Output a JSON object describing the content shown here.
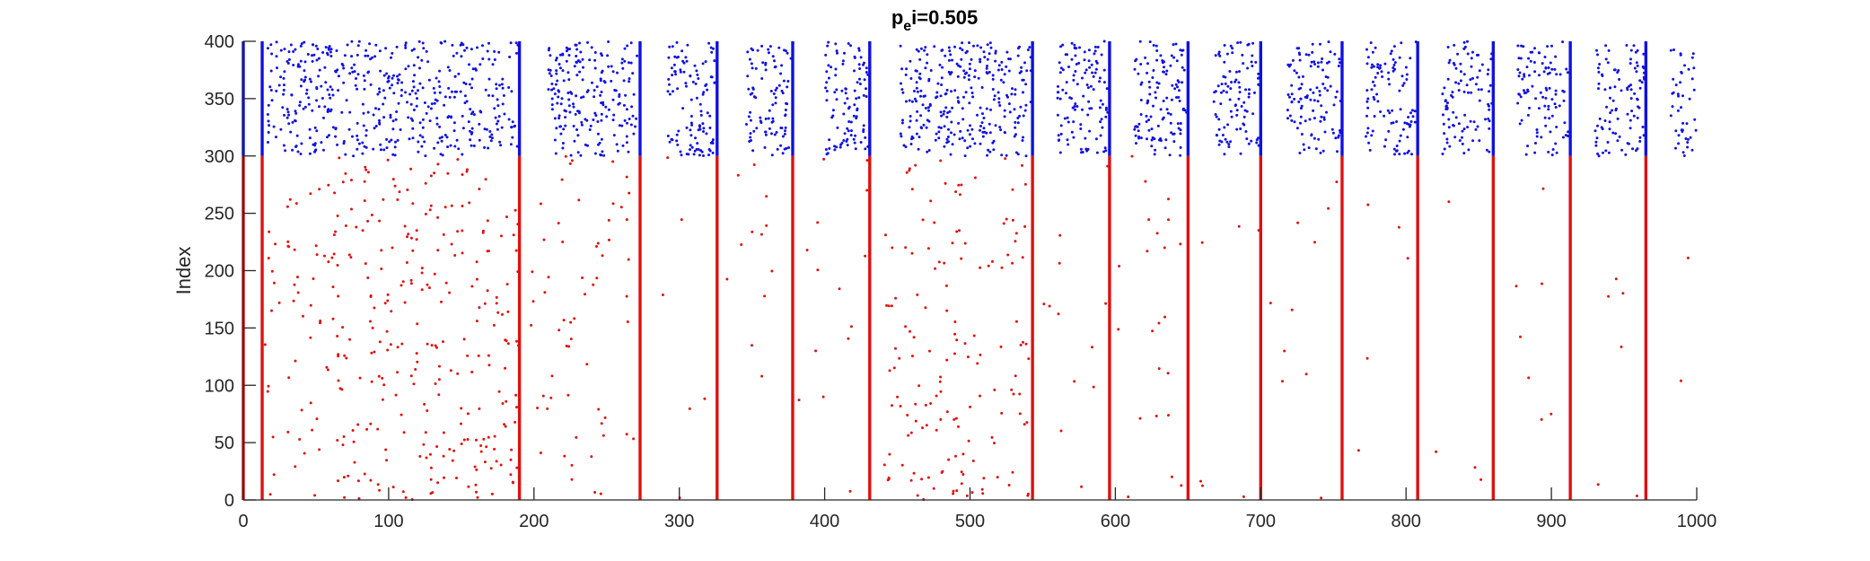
{
  "chart_data": {
    "type": "scatter",
    "title_main": "p",
    "title_sub": "e",
    "title_rest": "i=0.505",
    "xlabel": "",
    "ylabel": "Index",
    "xlim": [
      0,
      1000
    ],
    "ylim": [
      0,
      400
    ],
    "xticks": [
      0,
      100,
      200,
      300,
      400,
      500,
      600,
      700,
      800,
      900,
      1000
    ],
    "yticks": [
      0,
      50,
      100,
      150,
      200,
      250,
      300,
      350,
      400
    ],
    "grid": false,
    "legend": "none",
    "colors": {
      "excitatory": "#dd1111",
      "inhibitory": "#1111dd",
      "axis": "#262626"
    },
    "series": [
      {
        "index_range": [
          0,
          300
        ],
        "color_key": "excitatory"
      },
      {
        "index_range": [
          300,
          400
        ],
        "color_key": "inhibitory"
      }
    ],
    "synchronous_events_x": [
      0,
      13,
      190,
      273,
      326,
      378,
      431,
      543,
      596,
      650,
      700,
      756,
      808,
      860,
      913,
      965
    ],
    "excitatory_scatter_windows": [
      {
        "x": [
          15,
          190
        ],
        "count": 320
      },
      {
        "x": [
          198,
          272
        ],
        "count": 60
      },
      {
        "x": [
          280,
          325
        ],
        "count": 6
      },
      {
        "x": [
          330,
          377
        ],
        "count": 12
      },
      {
        "x": [
          382,
          430
        ],
        "count": 14
      },
      {
        "x": [
          440,
          542
        ],
        "count": 150
      },
      {
        "x": [
          548,
          595
        ],
        "count": 12
      },
      {
        "x": [
          600,
          649
        ],
        "count": 22
      },
      {
        "x": [
          655,
          699
        ],
        "count": 6
      },
      {
        "x": [
          705,
          755
        ],
        "count": 10
      },
      {
        "x": [
          760,
          807
        ],
        "count": 5
      },
      {
        "x": [
          812,
          859
        ],
        "count": 4
      },
      {
        "x": [
          865,
          912
        ],
        "count": 7
      },
      {
        "x": [
          918,
          964
        ],
        "count": 6
      },
      {
        "x": [
          970,
          1000
        ],
        "count": 2
      }
    ],
    "inhibitory_scatter_windows": [
      {
        "x": [
          16,
          189
        ],
        "count": 480
      },
      {
        "x": [
          210,
          271
        ],
        "count": 200
      },
      {
        "x": [
          292,
          325
        ],
        "count": 110
      },
      {
        "x": [
          346,
          377
        ],
        "count": 95
      },
      {
        "x": [
          400,
          430
        ],
        "count": 100
      },
      {
        "x": [
          452,
          542
        ],
        "count": 290
      },
      {
        "x": [
          560,
          595
        ],
        "count": 115
      },
      {
        "x": [
          613,
          649
        ],
        "count": 120
      },
      {
        "x": [
          667,
          699
        ],
        "count": 100
      },
      {
        "x": [
          717,
          755
        ],
        "count": 110
      },
      {
        "x": [
          771,
          807
        ],
        "count": 100
      },
      {
        "x": [
          825,
          859
        ],
        "count": 100
      },
      {
        "x": [
          876,
          912
        ],
        "count": 100
      },
      {
        "x": [
          930,
          964
        ],
        "count": 100
      },
      {
        "x": [
          982,
          1000
        ],
        "count": 45
      }
    ]
  }
}
